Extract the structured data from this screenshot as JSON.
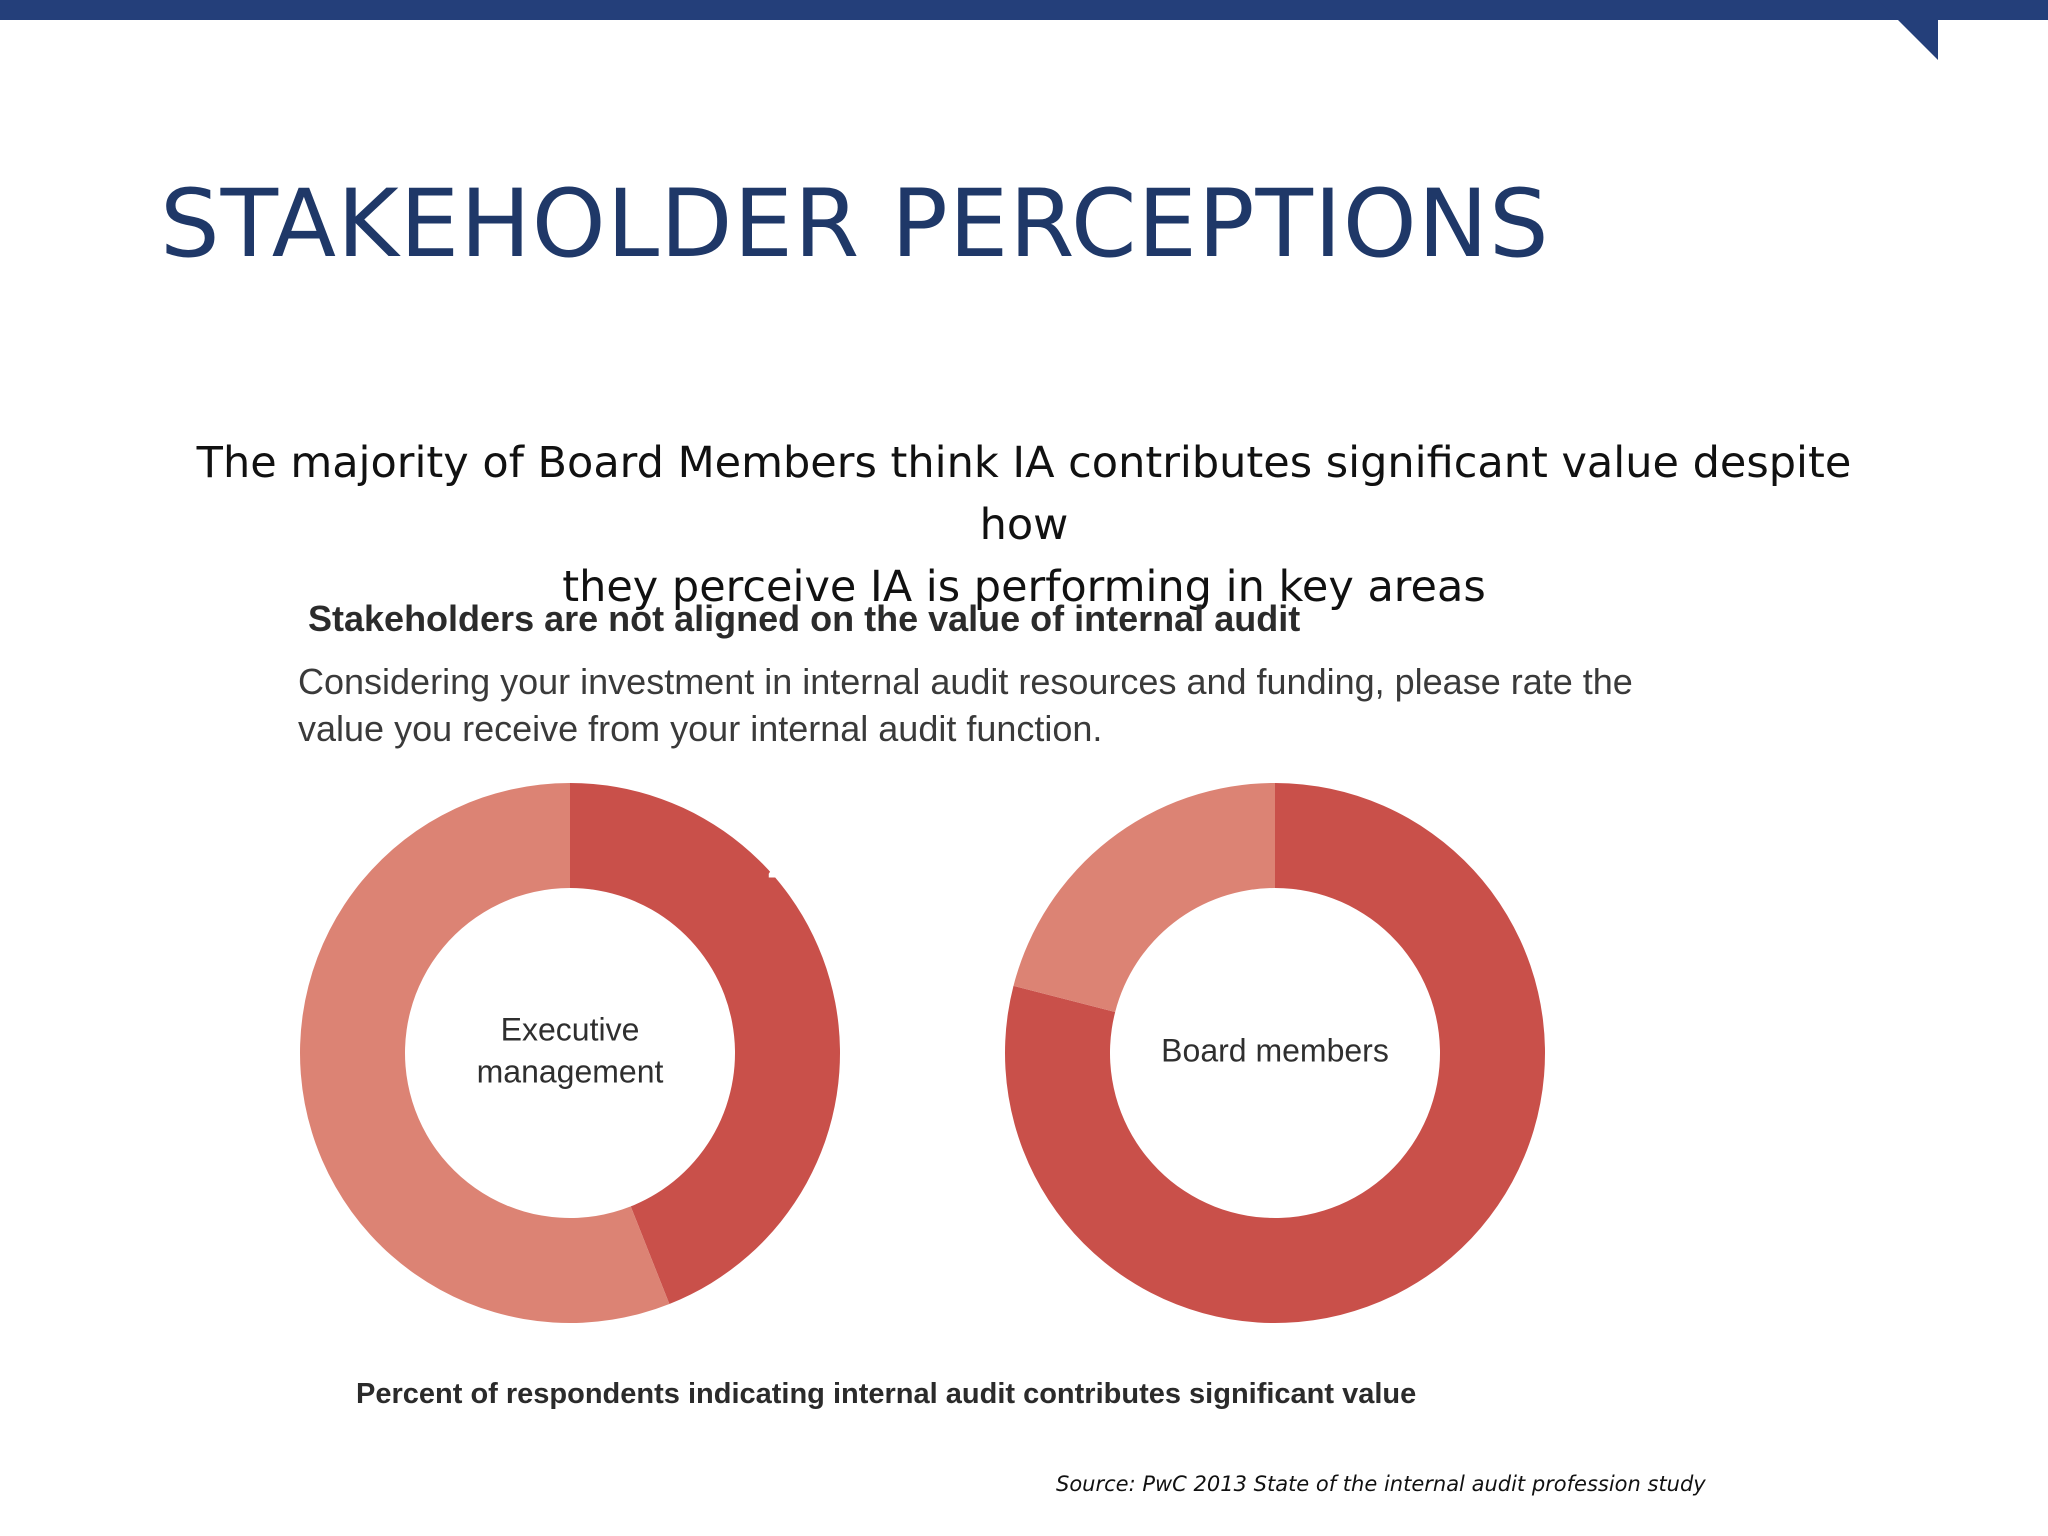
{
  "slide": {
    "title": "STAKEHOLDER PERCEPTIONS",
    "subtitle_line1": "The majority of Board Members think IA contributes significant value despite  how",
    "subtitle_line2": "they perceive IA is performing in key areas",
    "source": "Source: PwC 2013 State of the internal audit profession study"
  },
  "figure": {
    "heading": "Stakeholders are not aligned on the value of internal audit",
    "question_line1": "Considering your investment in internal audit resources and funding, please rate the",
    "question_line2": "value you receive from your internal audit function.",
    "caption": "Percent of respondents indicating internal audit contributes significant value"
  },
  "colors": {
    "header_bar": "#243f7a",
    "title": "#1f3868",
    "highlight_segment": "#c9504a",
    "remainder_segment": "#dc8374"
  },
  "chart_data": [
    {
      "type": "pie",
      "style": "donut",
      "center_label_lines": [
        "Executive",
        "management"
      ],
      "values": [
        44,
        56
      ],
      "value_labels": [
        "44%",
        ""
      ],
      "colors": [
        "#c9504a",
        "#dc8374"
      ],
      "start": "12 o'clock, clockwise"
    },
    {
      "type": "pie",
      "style": "donut",
      "center_label_lines": [
        "Board members"
      ],
      "values": [
        79,
        21
      ],
      "value_labels": [
        "79%",
        ""
      ],
      "colors": [
        "#c9504a",
        "#dc8374"
      ],
      "start": "12 o'clock, clockwise"
    }
  ]
}
